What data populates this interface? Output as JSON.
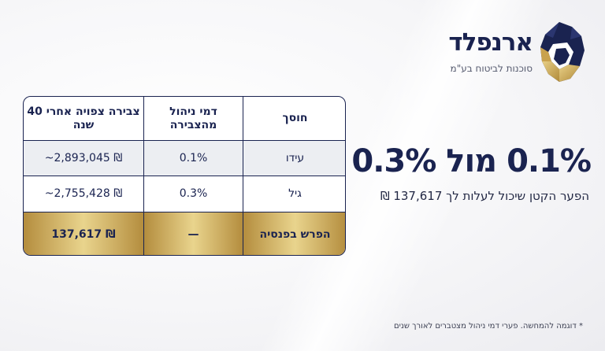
{
  "logo": {
    "name": "ארנפלד",
    "tagline": "סוכנות לביטוח בע\"מ",
    "colors": {
      "navy": "#1a2350",
      "gold": "#c9a24e"
    }
  },
  "headline": "0.1% מול 0.3%",
  "subline": "הפער הקטן שיכול לעלות לך 137,617 ₪",
  "table": {
    "headers": {
      "saver": "חוסך",
      "fee": "דמי ניהול מהצבירה",
      "accumulation": "צבירה צפויה אחרי 40 שנה"
    },
    "rows": [
      {
        "saver": "עידו",
        "fee": "0.1%",
        "accumulation": "~2,893,045 ₪"
      },
      {
        "saver": "גיל",
        "fee": "0.3%",
        "accumulation": "~2,755,428 ₪"
      }
    ],
    "total": {
      "label": "הפרש בפנסיה",
      "fee": "—",
      "amount": "137,617 ₪"
    },
    "colors": {
      "border": "#1a2350",
      "shade": "#eceef2",
      "gold": "#d9bd6b"
    }
  },
  "footnote": "* דוגמה להמחשה. פערי דמי ניהול מצטברים לאורך שנים"
}
